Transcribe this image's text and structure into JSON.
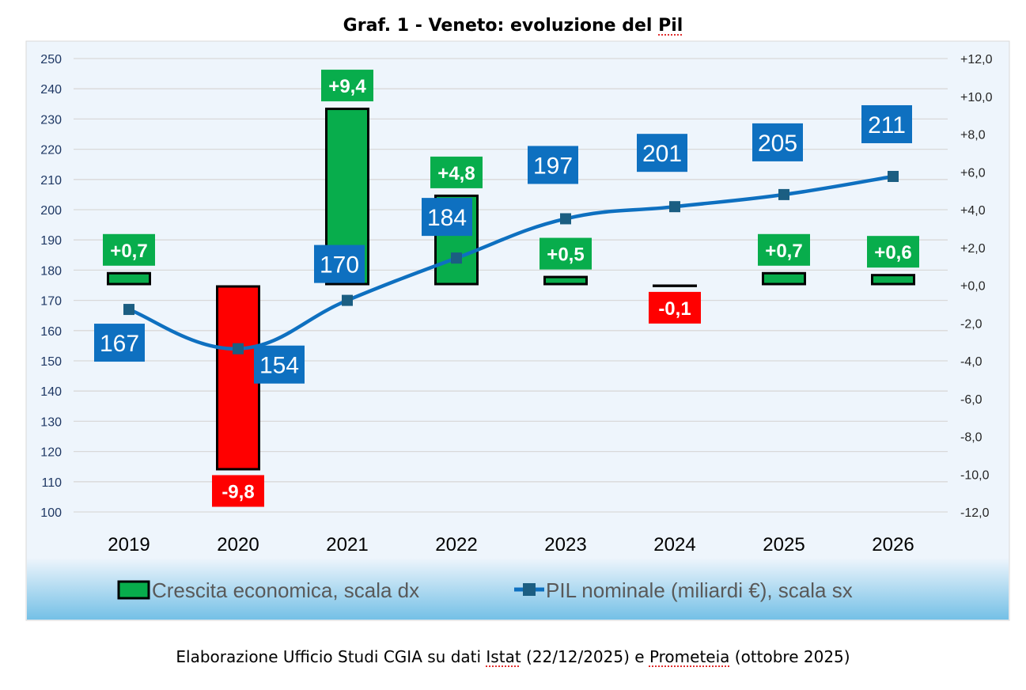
{
  "title": {
    "prefix": "Graf. 1 - Veneto: evoluzione del ",
    "underlined": "Pil"
  },
  "caption": {
    "part1": "Elaborazione Ufficio Studi CGIA su dati ",
    "word1": "Istat",
    "part2": " (22/12/2025) e ",
    "word2": "Prometeia",
    "part3": " (ottobre 2025)"
  },
  "colors": {
    "positive_bar": "#08AD4C",
    "negative_bar": "#FF0000",
    "line": "#0E70C0",
    "marker": "#1B5E82",
    "line_label_bg": "#0E70C0",
    "axis_text": "#1F3864",
    "plot_bg": "#EEF5FC",
    "legend_bg_top": "#EEF5FC",
    "legend_bg_bottom": "#74C0E6"
  },
  "chart_data": {
    "type": "bar+line",
    "title": "Graf. 1 - Veneto: evoluzione del Pil",
    "categories": [
      "2019",
      "2020",
      "2021",
      "2022",
      "2023",
      "2024",
      "2025",
      "2026"
    ],
    "series": [
      {
        "name": "Crescita economica, scala dx",
        "type": "bar",
        "axis": "right",
        "values": [
          0.7,
          -9.8,
          9.4,
          4.8,
          0.5,
          -0.1,
          0.7,
          0.6
        ],
        "labels": [
          "+0,7",
          "-9,8",
          "+9,4",
          "+4,8",
          "+0,5",
          "-0,1",
          "+0,7",
          "+0,6"
        ]
      },
      {
        "name": "PIL nominale (miliardi €), scala sx",
        "type": "line",
        "axis": "left",
        "values": [
          167,
          154,
          170,
          184,
          197,
          201,
          205,
          211
        ],
        "labels": [
          "167",
          "154",
          "170",
          "184",
          "197",
          "201",
          "205",
          "211"
        ]
      }
    ],
    "left_axis": {
      "range": [
        100,
        250
      ],
      "ticks": [
        "250",
        "240",
        "230",
        "220",
        "210",
        "200",
        "190",
        "180",
        "170",
        "160",
        "150",
        "140",
        "130",
        "120",
        "110",
        "100"
      ]
    },
    "right_axis": {
      "range": [
        -12,
        12
      ],
      "ticks": [
        "+12,0",
        "+10,0",
        "+8,0",
        "+6,0",
        "+4,0",
        "+2,0",
        "+0,0",
        "-2,0",
        "-4,0",
        "-6,0",
        "-8,0",
        "-10,0",
        "-12,0"
      ]
    },
    "grid": true,
    "legend": {
      "position": "bottom",
      "entries": [
        "Crescita economica, scala dx",
        "PIL nominale (miliardi €), scala sx"
      ]
    }
  }
}
